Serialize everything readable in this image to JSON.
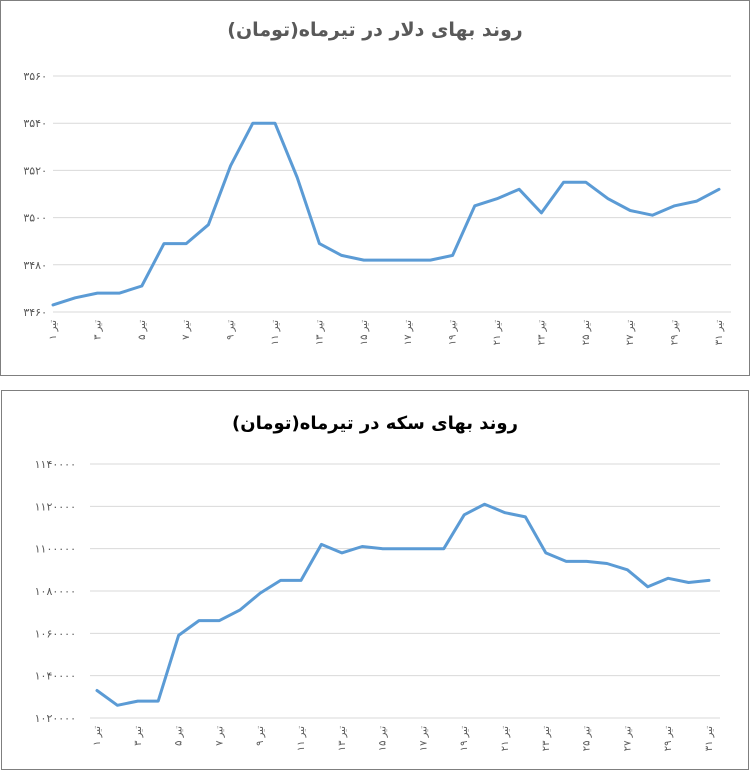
{
  "chart_data": [
    {
      "type": "line",
      "title": "روند بهای دلار در تیرماه(تومان)",
      "xlabel": "",
      "ylabel": "",
      "ylim": [
        3460,
        3560
      ],
      "yticks": [
        "۳۴۶۰",
        "۳۴۸۰",
        "۳۵۰۰",
        "۳۵۲۰",
        "۳۵۴۰",
        "۳۵۶۰"
      ],
      "xticks": [
        "۱ تیر",
        "۳ تیر",
        "۵ تیر",
        "۷ تیر",
        "۹ تیر",
        "۱۱ تیر",
        "۱۳ تیر",
        "۱۵ تیر",
        "۱۷ تیر",
        "۱۹ تیر",
        "۲۱ تیر",
        "۲۳ تیر",
        "۲۵ تیر",
        "۲۷ تیر",
        "۲۹ تیر",
        "۳۱ تیر"
      ],
      "grid": true,
      "legend": "none",
      "color": "#5b9bd5",
      "x": [
        1,
        2,
        3,
        4,
        5,
        6,
        7,
        8,
        9,
        10,
        11,
        12,
        13,
        14,
        15,
        16,
        17,
        18,
        19,
        20,
        21,
        22,
        23,
        24,
        25,
        26,
        27,
        28,
        29,
        30,
        31
      ],
      "series": [
        {
          "values": [
            3463,
            3466,
            3468,
            3468,
            3471,
            3489,
            3489,
            3497,
            3522,
            3540,
            3540,
            3517,
            3489,
            3484,
            3482,
            3482,
            3482,
            3482,
            3484,
            3505,
            3508,
            3512,
            3502,
            3515,
            3515,
            3508,
            3503,
            3501,
            3505,
            3507,
            3512
          ]
        }
      ]
    },
    {
      "type": "line",
      "title": "روند بهای سکه در تیرماه(تومان)",
      "xlabel": "",
      "ylabel": "",
      "ylim": [
        1020000,
        1140000
      ],
      "yticks": [
        "۱۰۲۰۰۰۰",
        "۱۰۴۰۰۰۰",
        "۱۰۶۰۰۰۰",
        "۱۰۸۰۰۰۰",
        "۱۱۰۰۰۰۰",
        "۱۱۲۰۰۰۰",
        "۱۱۴۰۰۰۰"
      ],
      "xticks": [
        "۱ تیر",
        "۳ تیر",
        "۵ تیر",
        "۷ تیر",
        "۹ تیر",
        "۱۱ تیر",
        "۱۳ تیر",
        "۱۵ تیر",
        "۱۷ تیر",
        "۱۹ تیر",
        "۲۱ تیر",
        "۲۳ تیر",
        "۲۵ تیر",
        "۲۷ تیر",
        "۲۹ تیر",
        "۳۱ تیر"
      ],
      "grid": true,
      "legend": "none",
      "color": "#5b9bd5",
      "x": [
        1,
        2,
        3,
        4,
        5,
        6,
        7,
        8,
        9,
        10,
        11,
        12,
        13,
        14,
        15,
        16,
        17,
        18,
        19,
        20,
        21,
        22,
        23,
        24,
        25,
        26,
        27,
        28,
        29,
        30,
        31
      ],
      "series": [
        {
          "values": [
            1033000,
            1026000,
            1028000,
            1028000,
            1059000,
            1066000,
            1066000,
            1071000,
            1079000,
            1085000,
            1085000,
            1102000,
            1098000,
            1101000,
            1100000,
            1100000,
            1100000,
            1100000,
            1116000,
            1121000,
            1117000,
            1115000,
            1098000,
            1094000,
            1094000,
            1093000,
            1090000,
            1082000,
            1086000,
            1084000,
            1085000
          ]
        }
      ]
    }
  ]
}
